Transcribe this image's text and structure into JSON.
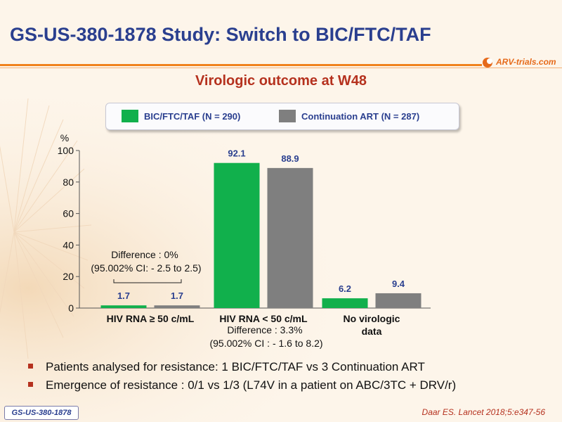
{
  "header": {
    "title": "GS-US-380-1878 Study: Switch to BIC/FTC/TAF",
    "logo_text": "ARV-trials.com"
  },
  "subtitle": "Virologic outcome at W48",
  "colors": {
    "bic": "#11b04c",
    "continuation": "#7f7f7f",
    "title": "#2a3f8f",
    "accent": "#b5311e",
    "rule": "#f0821e"
  },
  "legend": [
    {
      "label": "BIC/FTC/TAF (N = 290)"
    },
    {
      "label": "Continuation  ART (N = 287)"
    }
  ],
  "chart_data": {
    "type": "bar",
    "ylabel": "%",
    "ylim": [
      0,
      100
    ],
    "yticks": [
      "0",
      "20",
      "40",
      "60",
      "80",
      "100"
    ],
    "categories": [
      "HIV RNA ≥ 50 c/mL",
      "HIV RNA < 50 c/mL",
      "No virologic data"
    ],
    "series": [
      {
        "name": "BIC/FTC/TAF (N = 290)",
        "values": [
          1.7,
          92.1,
          6.2
        ]
      },
      {
        "name": "Continuation  ART (N = 287)",
        "values": [
          1.7,
          88.9,
          9.4
        ]
      }
    ],
    "value_labels": [
      [
        "1.7",
        "92.1",
        "6.2"
      ],
      [
        "1.7",
        "88.9",
        "9.4"
      ]
    ],
    "annotations": {
      "diff1_line1": "Difference : 0%",
      "diff1_line2": "(95.002% CI: - 2.5 to 2.5)",
      "diff2_line1": "Difference : 3.3%",
      "diff2_line2": "(95.002% CI : - 1.6 to 8.2)"
    }
  },
  "bullets": [
    "Patients analysed for resistance: 1 BIC/FTC/TAF vs 3 Continuation ART",
    "Emergence of resistance : 0/1 vs 1/3 (L74V in a patient on ABC/3TC + DRV/r)"
  ],
  "footer": {
    "badge": "GS-US-380-1878",
    "citation": "Daar ES. Lancet 2018;5:e347-56"
  }
}
